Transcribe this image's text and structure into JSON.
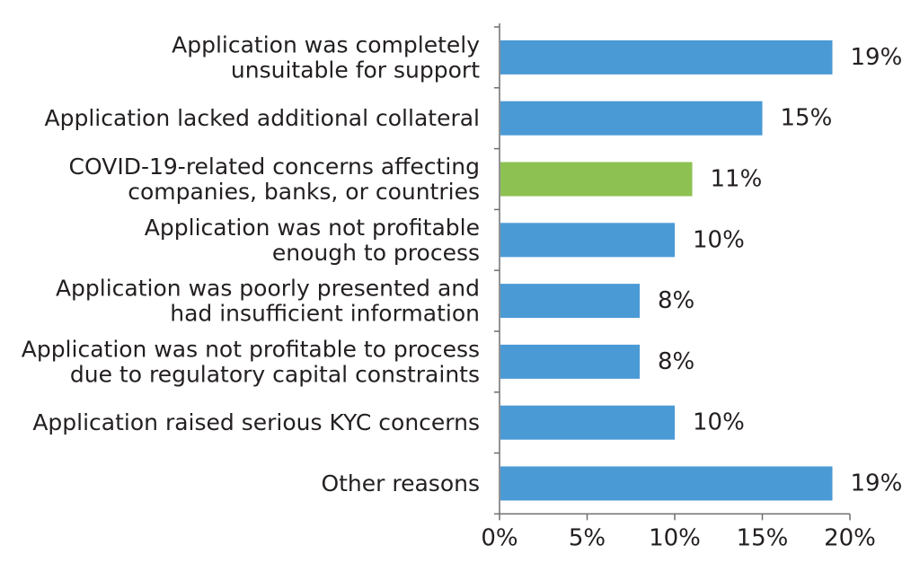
{
  "chart_data": {
    "type": "bar",
    "orientation": "horizontal",
    "title": "",
    "xlabel": "",
    "ylabel": "",
    "categories": [
      [
        "Application was completely",
        "unsuitable for support"
      ],
      [
        "Application lacked additional collateral"
      ],
      [
        "COVID-19-related concerns affecting",
        "companies, banks, or countries"
      ],
      [
        "Application was not profitable",
        "enough to process"
      ],
      [
        "Application was poorly presented and",
        "had insufficient information"
      ],
      [
        "Application was not profitable to process",
        "due to regulatory capital constraints"
      ],
      [
        "Application raised serious KYC concerns"
      ],
      [
        "Other reasons"
      ]
    ],
    "values": [
      19,
      15,
      11,
      10,
      8,
      8,
      10,
      19
    ],
    "data_labels": [
      "19%",
      "15%",
      "11%",
      "10%",
      "8%",
      "8%",
      "10%",
      "19%"
    ],
    "bar_colors": [
      "#4a9ad5",
      "#4a9ad5",
      "#8dc152",
      "#4a9ad5",
      "#4a9ad5",
      "#4a9ad5",
      "#4a9ad5",
      "#4a9ad5"
    ],
    "xlim": [
      0,
      20
    ],
    "xticks": [
      0,
      5,
      10,
      15,
      20
    ],
    "xtick_labels": [
      "0%",
      "5%",
      "10%",
      "15%",
      "20%"
    ],
    "grid": false,
    "legend": "none"
  }
}
